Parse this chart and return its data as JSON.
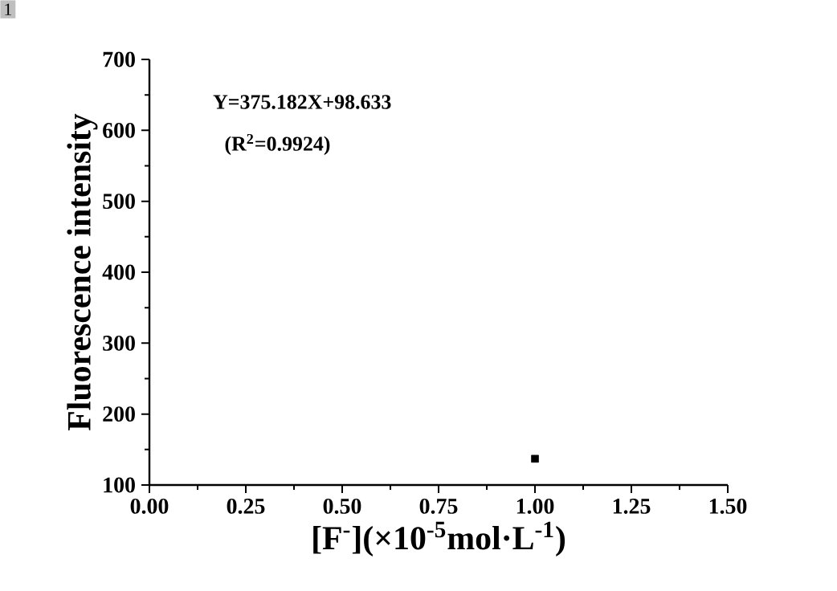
{
  "chart_data": {
    "type": "scatter",
    "xlabel": "[F$^{-}$](×10$^{-5}$mol·L$^{-1}$)",
    "ylabel": "Fluorescence intensity",
    "x": [
      1.0
    ],
    "series": [
      {
        "color": "#000000",
        "values": [
          137
        ]
      }
    ],
    "marker": "square",
    "xlim": [
      0,
      1.5
    ],
    "ylim": [
      100,
      700
    ],
    "xticks": [
      {
        "value": 0,
        "label": "0.00"
      },
      {
        "value": 0.25,
        "label": "0.25"
      },
      {
        "value": 0.5,
        "label": "0.50"
      },
      {
        "value": 0.75,
        "label": "0.75"
      },
      {
        "value": 1.0,
        "label": "1.00"
      },
      {
        "value": 1.25,
        "label": "1.25"
      },
      {
        "value": 1.5,
        "label": "1.50"
      }
    ],
    "yticks": [
      100,
      200,
      300,
      400,
      500,
      600,
      700
    ],
    "annotations": [
      "Y=375.182X+98.633",
      "(R$^{2}$=0.9924)",
      "1"
    ]
  }
}
